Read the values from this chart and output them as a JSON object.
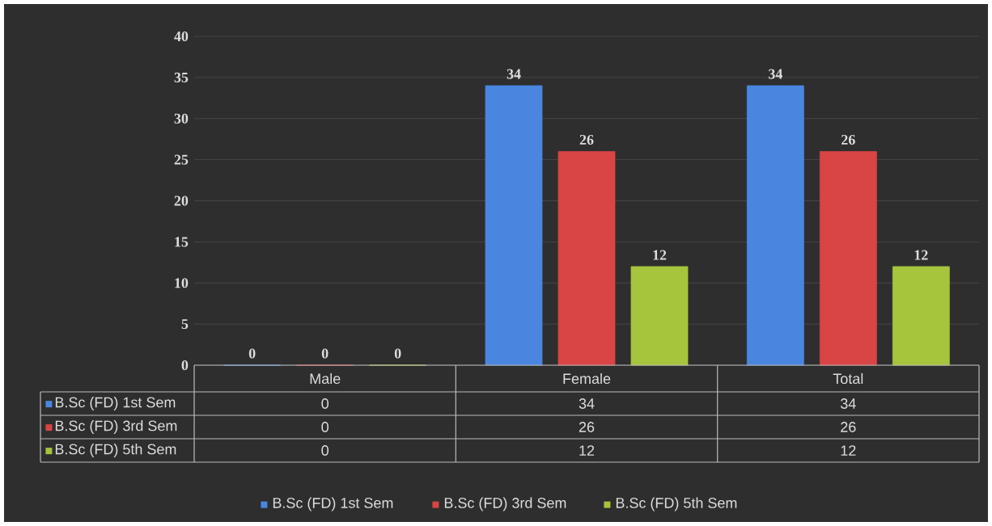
{
  "chart_data": {
    "type": "bar",
    "categories": [
      "Male",
      "Female",
      "Total"
    ],
    "series": [
      {
        "name": "B.Sc (FD) 1st Sem",
        "color": "#4a86e0",
        "values": [
          0,
          34,
          34
        ],
        "value_labels": [
          "0",
          "34",
          "34"
        ]
      },
      {
        "name": "B.Sc (FD) 3rd Sem",
        "color": "#d94444",
        "values": [
          0,
          26,
          26
        ],
        "value_labels": [
          "0",
          "26",
          "26"
        ]
      },
      {
        "name": "B.Sc (FD) 5th Sem",
        "color": "#a6c43c",
        "values": [
          0,
          12,
          12
        ],
        "value_labels": [
          "0",
          "12",
          "12"
        ]
      }
    ],
    "ylim": [
      0,
      40
    ],
    "yticks": [
      0,
      5,
      10,
      15,
      20,
      25,
      30,
      35,
      40
    ],
    "grid": "y",
    "legend": "bottom"
  }
}
